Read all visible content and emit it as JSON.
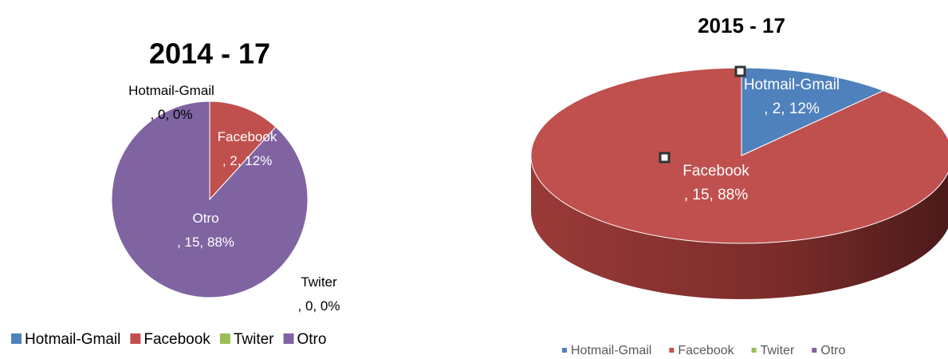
{
  "chart_data": [
    {
      "type": "pie",
      "title": "2014 - 17",
      "categories": [
        "Hotmail-Gmail",
        "Facebook",
        "Twiter",
        "Otro"
      ],
      "values": [
        0,
        2,
        0,
        15
      ],
      "value_labels": [
        "Hotmail-Gmail, 0, 0%",
        "Facebook, 2, 12%",
        "Twiter, 0, 0%",
        "Otro, 15, 88%"
      ],
      "colors": [
        "#4f81bd",
        "#c0504d",
        "#9bbb59",
        "#8064a2"
      ],
      "legend": "bottom"
    },
    {
      "type": "pie3d",
      "title": "2015 - 17",
      "categories": [
        "Hotmail-Gmail",
        "Facebook",
        "Twiter",
        "Otro"
      ],
      "values": [
        2,
        15,
        0,
        0
      ],
      "value_labels": [
        "Hotmail-Gmail, 2, 12%",
        "Facebook, 15, 88%",
        null,
        null
      ],
      "colors": [
        "#4f81bd",
        "#c0504d",
        "#9bbb59",
        "#8064a2"
      ],
      "legend": "bottom"
    }
  ]
}
